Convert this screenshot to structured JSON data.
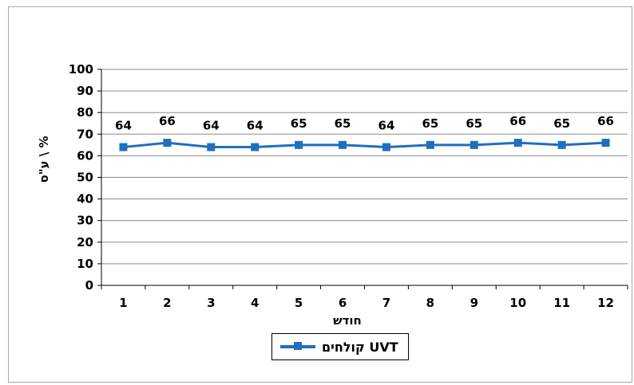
{
  "chart_data": {
    "type": "line",
    "x": [
      1,
      2,
      3,
      4,
      5,
      6,
      7,
      8,
      9,
      10,
      11,
      12
    ],
    "series": [
      {
        "name": "UVT קולחים",
        "values": [
          64,
          66,
          64,
          64,
          65,
          65,
          64,
          65,
          65,
          66,
          65,
          66
        ]
      }
    ],
    "data_labels": [
      "64",
      "66",
      "64",
      "64",
      "65",
      "65",
      "64",
      "65",
      "65",
      "66",
      "65",
      "66"
    ],
    "xlabel": "חודש",
    "ylabel": "% \\ ע\"ס",
    "ylim": [
      0,
      100
    ],
    "yticks": [
      0,
      10,
      20,
      30,
      40,
      50,
      60,
      70,
      80,
      90,
      100
    ],
    "grid": true,
    "legend_position": "bottom",
    "color": "#1f6fbd"
  }
}
